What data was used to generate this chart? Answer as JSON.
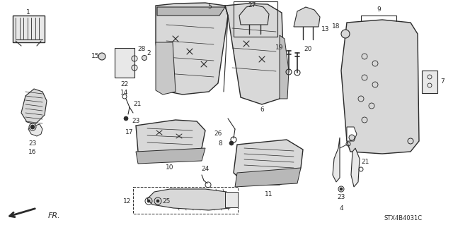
{
  "bg_color": "#ffffff",
  "part_code": "STX4B4031C",
  "line_color": "#2a2a2a",
  "gray_fill": "#d8d8d8",
  "light_gray": "#e8e8e8",
  "fr_label": "FR.",
  "label_fs": 6.5
}
